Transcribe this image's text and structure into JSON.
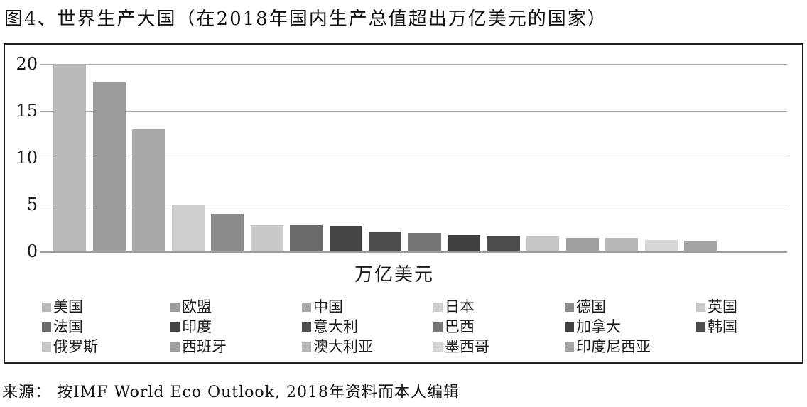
{
  "source_note": "来源： 按IMF World Eco Outlook, 2018年资料而本人编辑",
  "chart_data": {
    "type": "bar",
    "title": "图4、世界生产大国（在2018年国内生产总值超出万亿美元的国家）",
    "categories": [
      "美国",
      "欧盟",
      "中国",
      "日本",
      "德国",
      "英国",
      "法国",
      "印度",
      "意大利",
      "巴西",
      "加拿大",
      "韩国",
      "俄罗斯",
      "西班牙",
      "澳大利亚",
      "墨西哥",
      "印度尼西亚"
    ],
    "values": [
      20,
      18,
      13,
      5,
      4,
      2.8,
      2.8,
      2.7,
      2.1,
      1.9,
      1.7,
      1.6,
      1.6,
      1.4,
      1.4,
      1.2,
      1.1
    ],
    "bar_colors": [
      "#b9b9b9",
      "#9b9b9b",
      "#a9a9a9",
      "#cdcdcd",
      "#8b8b8b",
      "#c9c9c9",
      "#6a6a6a",
      "#444444",
      "#4e4e4e",
      "#767676",
      "#404040",
      "#4c4c4c",
      "#c7c7c7",
      "#9f9f9f",
      "#b7b7b7",
      "#d7d7d7",
      "#a4a4a4"
    ],
    "xlabel": "万亿美元",
    "ylabel": "",
    "ylim": [
      0,
      20
    ],
    "yticks": [
      0,
      5,
      10,
      15,
      20
    ],
    "grid": true,
    "legend_position": "bottom",
    "legend_columns": 6
  },
  "colors": {
    "gridline": "#ababab",
    "baseline": "#9c9c9c",
    "frame_border": "#1f1f1f",
    "text": "#1a1a1a",
    "background": "#ffffff"
  }
}
